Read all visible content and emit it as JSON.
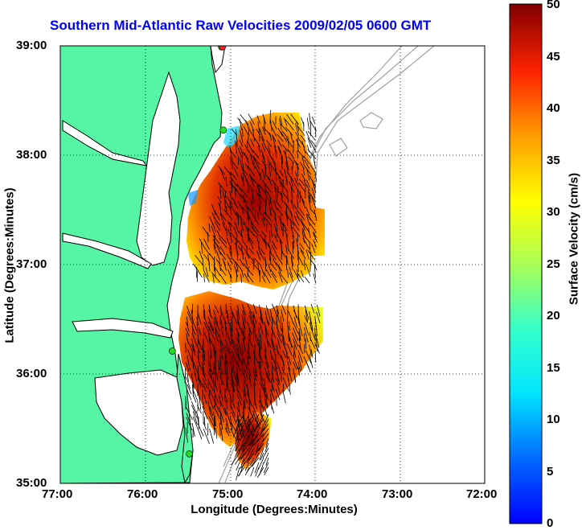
{
  "title": "Southern Mid-Atlantic Raw Velocities 2009/02/05 0600 GMT",
  "axes": {
    "xlabel": "Longitude (Degrees:Minutes)",
    "ylabel": "Latitude (Degrees:Minutes)",
    "x_ticks": [
      "77:00",
      "76:00",
      "75:00",
      "74:00",
      "73:00",
      "72:00"
    ],
    "y_ticks": [
      "39:00",
      "38:00",
      "37:00",
      "36:00",
      "35:00"
    ],
    "x_range": [
      -77,
      -72
    ],
    "y_range": [
      35,
      39
    ],
    "grid": "dotted"
  },
  "colorbar": {
    "label": "Surface Velocity (cm/s)",
    "ticks": [
      "50",
      "45",
      "40",
      "35",
      "30",
      "25",
      "20",
      "15",
      "10",
      "5",
      "0"
    ],
    "range": [
      0,
      50
    ],
    "colormap": "jet"
  },
  "colors": {
    "land": "#55f5a5",
    "title": "#0000ff",
    "coast": "#000000",
    "bathymetry": "#a0a0a0",
    "station": "#22dd22",
    "station_alt": "#ff2020"
  },
  "stations": [
    {
      "lon": -75.1,
      "lat": 38.99
    },
    {
      "lon": -75.09,
      "lat": 38.99
    },
    {
      "lon": -75.08,
      "lat": 38.23
    },
    {
      "lon": -75.68,
      "lat": 36.21
    },
    {
      "lon": -75.48,
      "lat": 35.27
    }
  ]
}
